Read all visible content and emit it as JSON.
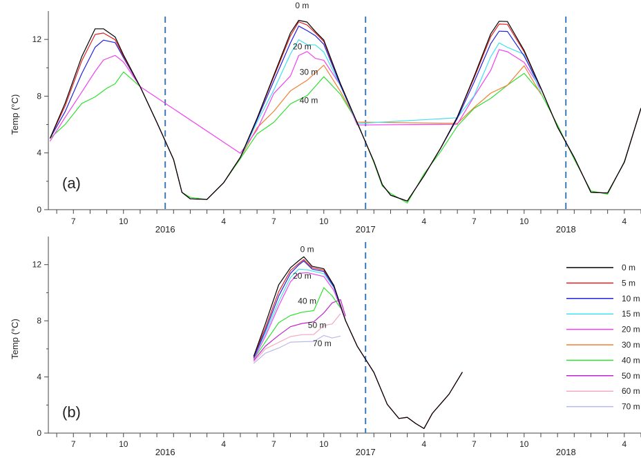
{
  "figure": {
    "panels": [
      {
        "id": "a",
        "label": "(a)",
        "ylabel": "Temp (°C)"
      },
      {
        "id": "b",
        "label": "(b)",
        "ylabel": "Temp (°C)"
      }
    ],
    "legend": [
      {
        "name": "0 m",
        "color": "#000000"
      },
      {
        "name": "5 m",
        "color": "#e02020"
      },
      {
        "name": "10 m",
        "color": "#2020e0"
      },
      {
        "name": "15 m",
        "color": "#40e0f0"
      },
      {
        "name": "20 m",
        "color": "#f040f0"
      },
      {
        "name": "30 m",
        "color": "#f08030"
      },
      {
        "name": "40 m",
        "color": "#30e030"
      },
      {
        "name": "50 m",
        "color": "#c020d0"
      },
      {
        "name": "60 m",
        "color": "#f4a8c0"
      },
      {
        "name": "70 m",
        "color": "#b8b8f0"
      }
    ],
    "legend_placement": "right",
    "year_markers": [
      "2016",
      "2017",
      "2018"
    ],
    "month_tick_labels": [
      "7",
      "10",
      "4",
      "7",
      "10",
      "4",
      "7",
      "10",
      "4"
    ]
  },
  "chart_data": [
    {
      "type": "line",
      "panel": "(a)",
      "ylabel": "Temp (°C)",
      "xlabel": "",
      "ylim": [
        0,
        14
      ],
      "y_ticks": [
        0,
        4,
        8,
        12
      ],
      "x_unit": "month index (Jan 2015 = 1)",
      "xlim": [
        5.5,
        41
      ],
      "grid": false,
      "depth_labels": [
        {
          "text": "0 m",
          "x": 20.7,
          "y": 14.2
        },
        {
          "text": "20 m",
          "x": 20.7,
          "y": 11.3
        },
        {
          "text": "30 m",
          "x": 21.1,
          "y": 9.5
        },
        {
          "text": "40 m",
          "x": 21.1,
          "y": 7.5
        }
      ],
      "series": [
        {
          "name": "0 m",
          "x": [
            5.6,
            6.5,
            7.5,
            8.3,
            8.8,
            9.5,
            10.0,
            11,
            12,
            13,
            13.5,
            14,
            15,
            16,
            17,
            18,
            19,
            20,
            20.5,
            21,
            21.5,
            22,
            23,
            24,
            25,
            25.5,
            26,
            27,
            28,
            29,
            30,
            31,
            32,
            32.5,
            33,
            34,
            35,
            36,
            37,
            38,
            39,
            40,
            41
          ],
          "values": [
            5.2,
            7.5,
            10.8,
            12.8,
            12.9,
            12.3,
            11.0,
            8.6,
            6.2,
            3.5,
            1.4,
            0.7,
            0.8,
            1.8,
            3.8,
            6.3,
            9.6,
            12.3,
            13.3,
            13.4,
            12.5,
            11.8,
            9.0,
            6.0,
            3.5,
            1.6,
            1.0,
            0.6,
            2.4,
            4.3,
            6.6,
            9.3,
            12.5,
            13.4,
            13.1,
            11.4,
            8.4,
            6.0,
            3.5,
            1.4,
            1.0,
            3.5,
            7.0
          ]
        },
        {
          "name": "5 m",
          "x": [
            5.6,
            6.5,
            7.5,
            8.3,
            8.8,
            9.5,
            10.0,
            11,
            12,
            13,
            13.5,
            14,
            15,
            16,
            17,
            18,
            19,
            20,
            20.5,
            21,
            21.5,
            22,
            23,
            24,
            25,
            25.5,
            26,
            27,
            28,
            29,
            30,
            31,
            32,
            32.5,
            33,
            34,
            35,
            36,
            37,
            38,
            39,
            40,
            41
          ],
          "values": [
            5.2,
            7.3,
            10.5,
            12.4,
            12.6,
            12.1,
            10.9,
            8.6,
            6.2,
            3.5,
            1.4,
            0.7,
            0.8,
            1.8,
            3.8,
            6.3,
            9.5,
            12.1,
            13.2,
            13.2,
            12.4,
            11.7,
            9.0,
            6.0,
            3.5,
            1.6,
            1.0,
            0.6,
            2.4,
            4.3,
            6.6,
            9.2,
            12.3,
            13.2,
            12.9,
            11.3,
            8.4,
            6.0,
            3.5,
            1.4,
            1.0,
            3.5,
            7.0
          ]
        },
        {
          "name": "10 m",
          "x": [
            5.6,
            6.5,
            7.5,
            8.3,
            8.8,
            9.5,
            10.0,
            11,
            12,
            13,
            13.5,
            14,
            15,
            16,
            17,
            18,
            19,
            20,
            20.5,
            21,
            21.5,
            22,
            23,
            24,
            25,
            25.5,
            26,
            27,
            28,
            29,
            30,
            31,
            32,
            32.5,
            33,
            34,
            35,
            36,
            37,
            38,
            39,
            40,
            41
          ],
          "values": [
            5.2,
            6.9,
            9.6,
            11.5,
            12.1,
            11.9,
            10.8,
            8.6,
            6.2,
            3.5,
            1.4,
            0.7,
            0.8,
            1.8,
            3.8,
            6.2,
            9.2,
            11.6,
            12.9,
            12.8,
            12.2,
            11.5,
            8.9,
            6.0,
            3.5,
            1.6,
            1.0,
            0.6,
            2.4,
            4.3,
            6.5,
            8.9,
            11.8,
            12.7,
            12.4,
            11.0,
            8.4,
            6.0,
            3.5,
            1.4,
            1.0,
            3.5,
            7.0
          ]
        },
        {
          "name": "15 m",
          "x": [
            17,
            18,
            19,
            20,
            20.5,
            21,
            21.5,
            22,
            23,
            24,
            30,
            31,
            32,
            32.5,
            33,
            34,
            35
          ],
          "values": [
            3.8,
            6.0,
            8.6,
            10.8,
            12.0,
            11.8,
            11.5,
            11.0,
            8.8,
            6.0,
            6.3,
            8.2,
            10.6,
            11.8,
            11.6,
            10.8,
            8.4
          ]
        },
        {
          "name": "20 m",
          "x": [
            5.6,
            6.5,
            7.5,
            8.3,
            8.8,
            9.5,
            10.0,
            11,
            17,
            18,
            19,
            20,
            20.5,
            21,
            21.5,
            22,
            23,
            24,
            30,
            31,
            32,
            32.5,
            33,
            34,
            35
          ],
          "values": [
            5.0,
            6.5,
            8.3,
            9.8,
            10.7,
            11.0,
            10.5,
            8.6,
            3.8,
            5.8,
            8.0,
            9.6,
            10.8,
            11.0,
            10.8,
            10.6,
            8.7,
            6.0,
            6.2,
            7.8,
            10.0,
            11.2,
            11.0,
            10.5,
            8.4
          ]
        },
        {
          "name": "30 m",
          "x": [
            17,
            18,
            19,
            20,
            21,
            22,
            23,
            24,
            30,
            31,
            32,
            33,
            34,
            35
          ],
          "values": [
            3.8,
            5.6,
            7.1,
            8.2,
            9.3,
            10.0,
            8.5,
            6.0,
            6.0,
            7.3,
            8.1,
            8.9,
            10.0,
            8.3
          ]
        },
        {
          "name": "40 m",
          "x": [
            5.6,
            6.5,
            7.5,
            8.3,
            9.0,
            9.5,
            10.0,
            11,
            12,
            13,
            13.5,
            14,
            15,
            16,
            17,
            18,
            19,
            20,
            21,
            22,
            23,
            24,
            25,
            25.5,
            26,
            27,
            28,
            29,
            30,
            31,
            32,
            33,
            34,
            35,
            36,
            37,
            38,
            39,
            40,
            41
          ],
          "values": [
            5.2,
            6.0,
            7.5,
            8.0,
            8.4,
            9.0,
            9.8,
            8.6,
            6.2,
            3.5,
            1.4,
            0.8,
            0.8,
            1.8,
            3.7,
            5.2,
            6.3,
            7.3,
            8.2,
            9.2,
            8.3,
            6.0,
            3.5,
            1.6,
            1.0,
            0.6,
            2.4,
            4.2,
            5.8,
            7.2,
            7.8,
            8.8,
            9.6,
            8.2,
            6.0,
            3.5,
            1.4,
            1.0,
            3.5,
            7.0
          ]
        }
      ]
    },
    {
      "type": "line",
      "panel": "(b)",
      "ylabel": "Temp (°C)",
      "xlabel": "",
      "ylim": [
        0,
        14
      ],
      "y_ticks": [
        0,
        4,
        8,
        12
      ],
      "x_unit": "month index (Jan 2015 = 1)",
      "xlim": [
        5.5,
        41
      ],
      "grid": false,
      "depth_labels": [
        {
          "text": "0 m",
          "x": 21.0,
          "y": 12.9
        },
        {
          "text": "20 m",
          "x": 20.7,
          "y": 11.0
        },
        {
          "text": "40 m",
          "x": 21.0,
          "y": 9.2
        },
        {
          "text": "50 m",
          "x": 21.6,
          "y": 7.5
        },
        {
          "text": "70 m",
          "x": 21.9,
          "y": 6.2
        }
      ],
      "series": [
        {
          "name": "0 m",
          "x": [
            17.8,
            18.5,
            19.3,
            20,
            20.5,
            20.8,
            21.3,
            22,
            22.6,
            23.3,
            24,
            25,
            25.8,
            26.5,
            27,
            27.5,
            28,
            28.5,
            29.5,
            30.3
          ],
          "values": [
            5.6,
            7.7,
            10.5,
            11.6,
            12.3,
            12.4,
            12.0,
            11.6,
            10.6,
            8.2,
            6.2,
            4.3,
            2.0,
            1.2,
            1.0,
            0.6,
            0.5,
            1.4,
            2.8,
            4.4
          ]
        },
        {
          "name": "5 m",
          "x": [
            17.8,
            18.5,
            19.3,
            20,
            20.5,
            20.8,
            21.3,
            22,
            22.6,
            23.3,
            24,
            25,
            25.8,
            26.5,
            27,
            27.5,
            28,
            28.5,
            29.5,
            30.3
          ],
          "values": [
            5.6,
            7.4,
            10.0,
            11.4,
            12.1,
            12.2,
            11.9,
            11.5,
            10.6,
            8.2,
            6.2,
            4.3,
            2.0,
            1.2,
            1.0,
            0.6,
            0.5,
            1.4,
            2.8,
            4.4
          ]
        },
        {
          "name": "10 m",
          "x": [
            17.8,
            18.5,
            19.3,
            20,
            20.5,
            20.8,
            21.3,
            22,
            22.6,
            23.3,
            24,
            25,
            25.8,
            26.5,
            27,
            27.5,
            28,
            28.5,
            29.5,
            30.3
          ],
          "values": [
            5.5,
            7.2,
            9.7,
            11.2,
            12.0,
            12.1,
            11.8,
            11.4,
            10.5,
            8.2,
            6.2,
            4.3,
            2.0,
            1.2,
            1.0,
            0.6,
            0.5,
            1.4,
            2.8,
            4.4
          ]
        },
        {
          "name": "15 m",
          "x": [
            17.8,
            18.5,
            19.3,
            20,
            20.5,
            21,
            22,
            22.6,
            23.3
          ],
          "values": [
            5.5,
            7.0,
            9.3,
            10.9,
            11.7,
            11.8,
            11.2,
            10.5,
            8.2
          ]
        },
        {
          "name": "20 m",
          "x": [
            17.8,
            18.5,
            19.3,
            20,
            20.5,
            21,
            22,
            22.6,
            23.3
          ],
          "values": [
            5.4,
            6.8,
            9.0,
            10.6,
            11.4,
            11.6,
            11.0,
            10.3,
            8.2
          ]
        },
        {
          "name": "40 m",
          "x": [
            17.8,
            18.5,
            19.3,
            20,
            20.7,
            21.4,
            22,
            22.5,
            23
          ],
          "values": [
            5.4,
            6.4,
            7.8,
            8.2,
            8.6,
            8.9,
            10.2,
            9.9,
            9.0
          ]
        },
        {
          "name": "50 m",
          "x": [
            17.8,
            18.5,
            19.3,
            20,
            20.7,
            21.4,
            22,
            22.5,
            23,
            23.3
          ],
          "values": [
            5.3,
            6.1,
            6.9,
            7.4,
            7.8,
            8.1,
            8.4,
            9.4,
            9.6,
            8.5
          ]
        },
        {
          "name": "60 m",
          "x": [
            17.8,
            18.5,
            19.3,
            20,
            20.7,
            21.4,
            22,
            22.5,
            23
          ],
          "values": [
            5.2,
            5.9,
            6.4,
            6.7,
            7.0,
            7.2,
            7.5,
            7.9,
            8.6
          ]
        },
        {
          "name": "70 m",
          "x": [
            17.8,
            18.5,
            19.3,
            20,
            20.7,
            21.4,
            22,
            22.5,
            23
          ],
          "values": [
            5.1,
            5.6,
            6.0,
            6.3,
            6.5,
            6.7,
            6.8,
            6.9,
            7.0
          ]
        }
      ]
    }
  ]
}
